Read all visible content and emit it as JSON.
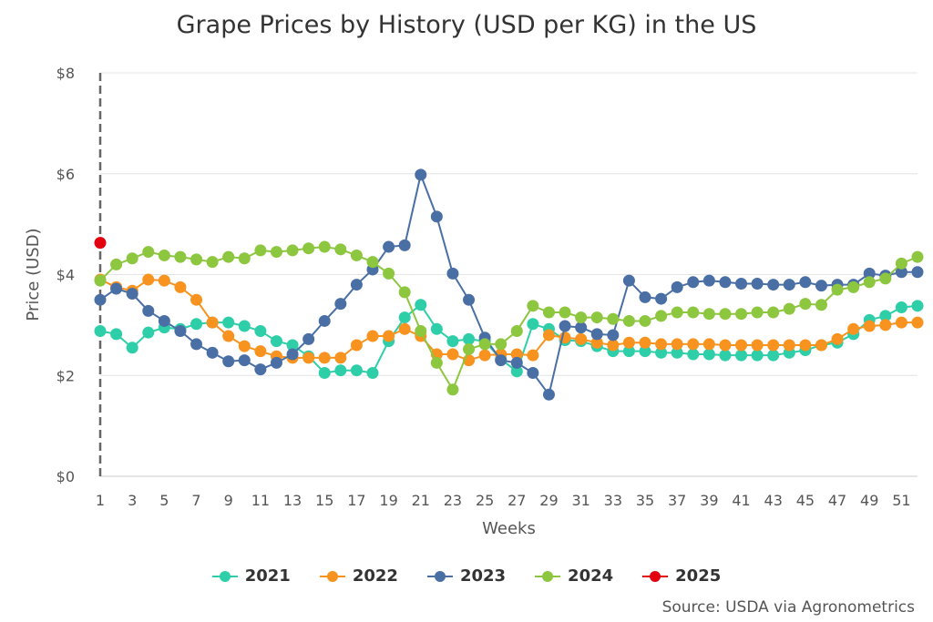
{
  "chart_data": {
    "type": "line",
    "title": "Grape Prices by History (USD per KG) in the US",
    "xlabel": "Weeks",
    "ylabel": "Price (USD)",
    "ylim": [
      0,
      8
    ],
    "yticks": [
      "$0",
      "$2",
      "$4",
      "$6",
      "$8"
    ],
    "ytick_values": [
      0,
      2,
      4,
      6,
      8
    ],
    "xlim": [
      1,
      52
    ],
    "xticks": [
      1,
      3,
      5,
      7,
      9,
      11,
      13,
      15,
      17,
      19,
      21,
      23,
      25,
      27,
      29,
      31,
      33,
      35,
      37,
      39,
      41,
      43,
      45,
      47,
      49,
      51
    ],
    "grid": "horizontal",
    "legend_position": "bottom",
    "series": [
      {
        "name": "2021",
        "color": "#2ecfa8",
        "x": [
          1,
          2,
          3,
          4,
          5,
          6,
          7,
          8,
          9,
          10,
          11,
          12,
          13,
          14,
          15,
          16,
          17,
          18,
          19,
          20,
          21,
          22,
          23,
          24,
          25,
          26,
          27,
          28,
          29,
          30,
          31,
          32,
          33,
          34,
          35,
          36,
          37,
          38,
          39,
          40,
          41,
          42,
          43,
          44,
          45,
          46,
          47,
          48,
          49,
          50,
          51,
          52
        ],
        "values": [
          2.88,
          2.82,
          2.55,
          2.85,
          2.95,
          2.92,
          3.02,
          3.05,
          3.05,
          2.98,
          2.88,
          2.68,
          2.6,
          2.38,
          2.05,
          2.1,
          2.1,
          2.05,
          2.68,
          3.15,
          3.4,
          2.92,
          2.68,
          2.72,
          2.68,
          2.32,
          2.08,
          3.02,
          2.92,
          2.7,
          2.68,
          2.58,
          2.48,
          2.48,
          2.48,
          2.45,
          2.45,
          2.42,
          2.42,
          2.4,
          2.4,
          2.4,
          2.4,
          2.45,
          2.5,
          2.6,
          2.65,
          2.82,
          3.1,
          3.18,
          3.35,
          3.38
        ]
      },
      {
        "name": "2022",
        "color": "#f7931e",
        "x": [
          1,
          2,
          3,
          4,
          5,
          6,
          7,
          8,
          9,
          10,
          11,
          12,
          13,
          14,
          15,
          16,
          17,
          18,
          19,
          20,
          21,
          22,
          23,
          24,
          25,
          26,
          27,
          28,
          29,
          30,
          31,
          32,
          33,
          34,
          35,
          36,
          37,
          38,
          39,
          40,
          41,
          42,
          43,
          44,
          45,
          46,
          47,
          48,
          49,
          50,
          51,
          52
        ],
        "values": [
          3.9,
          3.75,
          3.68,
          3.9,
          3.88,
          3.75,
          3.5,
          3.05,
          2.78,
          2.58,
          2.48,
          2.38,
          2.35,
          2.35,
          2.35,
          2.35,
          2.6,
          2.78,
          2.78,
          2.92,
          2.78,
          2.42,
          2.42,
          2.3,
          2.4,
          2.42,
          2.42,
          2.4,
          2.8,
          2.75,
          2.72,
          2.65,
          2.6,
          2.65,
          2.65,
          2.62,
          2.62,
          2.62,
          2.62,
          2.6,
          2.6,
          2.6,
          2.6,
          2.6,
          2.6,
          2.6,
          2.72,
          2.92,
          2.98,
          3.0,
          3.05,
          3.05
        ]
      },
      {
        "name": "2023",
        "color": "#4a6fa5",
        "x": [
          1,
          2,
          3,
          4,
          5,
          6,
          7,
          8,
          9,
          10,
          11,
          12,
          13,
          14,
          15,
          16,
          17,
          18,
          19,
          20,
          21,
          22,
          23,
          24,
          25,
          26,
          27,
          28,
          29,
          30,
          31,
          32,
          33,
          34,
          35,
          36,
          37,
          38,
          39,
          40,
          41,
          42,
          43,
          44,
          45,
          46,
          47,
          48,
          49,
          50,
          51,
          52
        ],
        "values": [
          3.5,
          3.72,
          3.62,
          3.28,
          3.08,
          2.88,
          2.62,
          2.45,
          2.28,
          2.3,
          2.12,
          2.25,
          2.42,
          2.72,
          3.08,
          3.42,
          3.8,
          4.1,
          4.55,
          4.58,
          5.98,
          5.15,
          4.02,
          3.5,
          2.75,
          2.3,
          2.25,
          2.05,
          1.62,
          2.98,
          2.95,
          2.82,
          2.8,
          3.88,
          3.55,
          3.52,
          3.75,
          3.85,
          3.88,
          3.85,
          3.82,
          3.82,
          3.8,
          3.8,
          3.85,
          3.78,
          3.8,
          3.8,
          4.02,
          3.98,
          4.05,
          4.05
        ]
      },
      {
        "name": "2024",
        "color": "#8dc63f",
        "x": [
          1,
          2,
          3,
          4,
          5,
          6,
          7,
          8,
          9,
          10,
          11,
          12,
          13,
          14,
          15,
          16,
          17,
          18,
          19,
          20,
          21,
          22,
          23,
          24,
          25,
          26,
          27,
          28,
          29,
          30,
          31,
          32,
          33,
          34,
          35,
          36,
          37,
          38,
          39,
          40,
          41,
          42,
          43,
          44,
          45,
          46,
          47,
          48,
          49,
          50,
          51,
          52
        ],
        "values": [
          3.88,
          4.2,
          4.32,
          4.45,
          4.38,
          4.35,
          4.3,
          4.25,
          4.35,
          4.32,
          4.48,
          4.45,
          4.48,
          4.52,
          4.55,
          4.5,
          4.38,
          4.25,
          4.02,
          3.65,
          2.88,
          2.25,
          1.72,
          2.52,
          2.62,
          2.62,
          2.88,
          3.38,
          3.25,
          3.25,
          3.15,
          3.15,
          3.12,
          3.08,
          3.08,
          3.18,
          3.25,
          3.25,
          3.22,
          3.22,
          3.22,
          3.25,
          3.25,
          3.32,
          3.42,
          3.4,
          3.7,
          3.75,
          3.85,
          3.92,
          4.22,
          4.35
        ]
      },
      {
        "name": "2025",
        "color": "#e3000f",
        "x": [
          1
        ],
        "values": [
          4.63
        ]
      }
    ]
  },
  "source": "Source: USDA via Agronometrics"
}
